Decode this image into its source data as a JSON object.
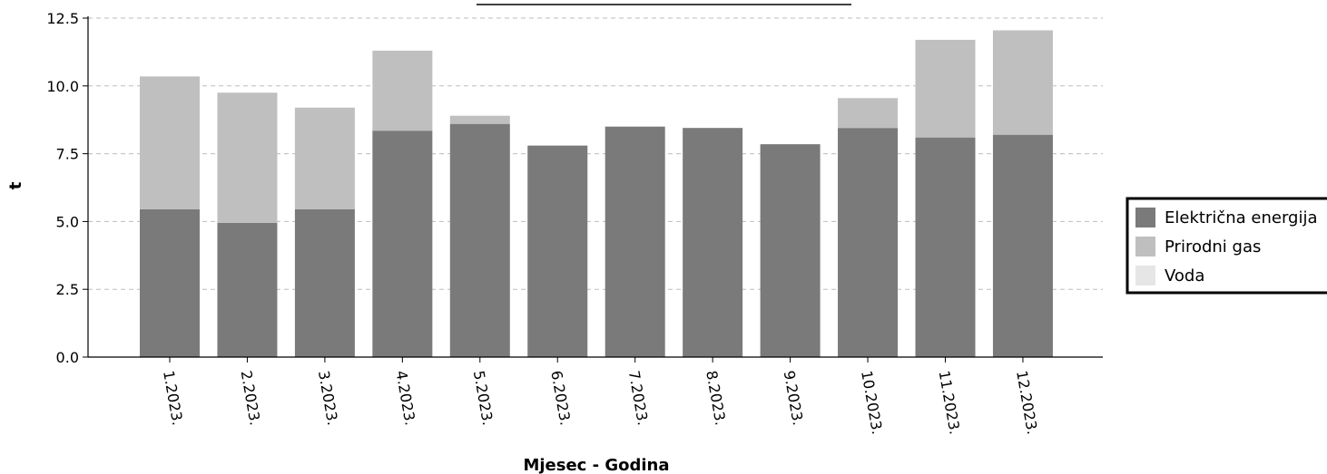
{
  "chart_data": {
    "type": "bar",
    "stacked": true,
    "title": "",
    "xlabel": "Mjesec - Godina",
    "ylabel": "t",
    "ylim": [
      0,
      12.5
    ],
    "yticks": [
      "0.0",
      "2.5",
      "5.0",
      "7.5",
      "10.0",
      "12.5"
    ],
    "grid": "horizontal dashed",
    "legend_position": "right",
    "categories": [
      "1.2023.",
      "2.2023.",
      "3.2023.",
      "4.2023.",
      "5.2023.",
      "6.2023.",
      "7.2023.",
      "8.2023.",
      "9.2023.",
      "10.2023.",
      "11.2023.",
      "12.2023."
    ],
    "series": [
      {
        "name": "Električna energija",
        "color": "#7a7a7a",
        "values": [
          5.45,
          4.95,
          5.45,
          8.35,
          8.6,
          7.8,
          8.5,
          8.45,
          7.85,
          8.45,
          8.1,
          8.2
        ]
      },
      {
        "name": "Prirodni gas",
        "color": "#bfbfbf",
        "values": [
          4.9,
          4.8,
          3.75,
          2.95,
          0.3,
          0.0,
          0.0,
          0.0,
          0.0,
          1.1,
          3.6,
          3.85
        ]
      },
      {
        "name": "Voda",
        "color": "#e6e6e6",
        "values": [
          0,
          0,
          0,
          0,
          0,
          0,
          0,
          0,
          0,
          0,
          0,
          0
        ]
      }
    ]
  }
}
